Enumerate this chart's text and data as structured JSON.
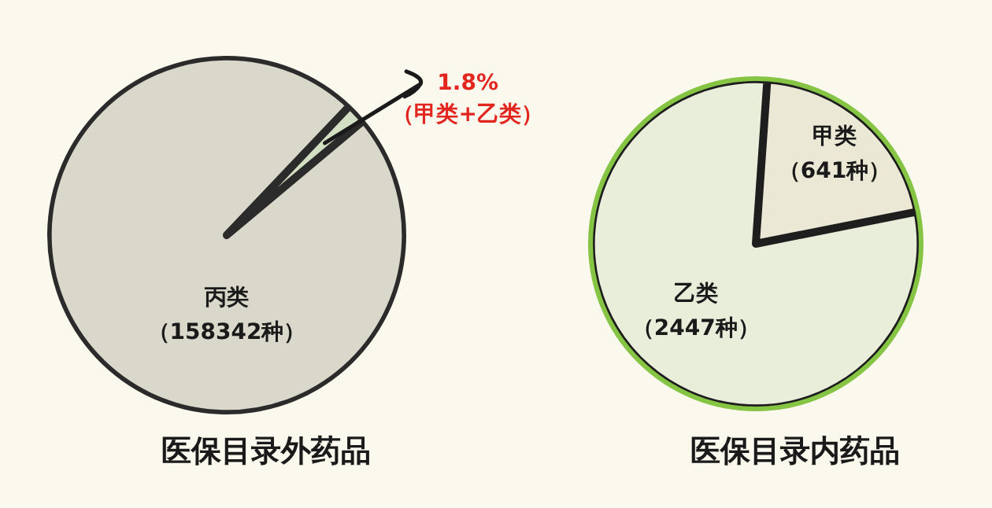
{
  "chart_data": [
    {
      "type": "pie",
      "title": "医保目录外药品",
      "categories": [
        "丙类",
        "（甲类+乙类）"
      ],
      "values": [
        98.2,
        1.8
      ],
      "colors": [
        "#d9d8cb",
        "#d3dfc2"
      ],
      "value_labels": [
        null,
        "1.8%"
      ],
      "annotations": [
        "（158342种）"
      ]
    },
    {
      "type": "pie",
      "title": "医保目录内药品",
      "categories": [
        "甲类",
        "乙类"
      ],
      "values": [
        641,
        2447
      ],
      "colors": [
        "#ece8d6",
        "#e9eedb"
      ],
      "value_labels": [
        "（641种）",
        "（2447种）"
      ]
    }
  ]
}
